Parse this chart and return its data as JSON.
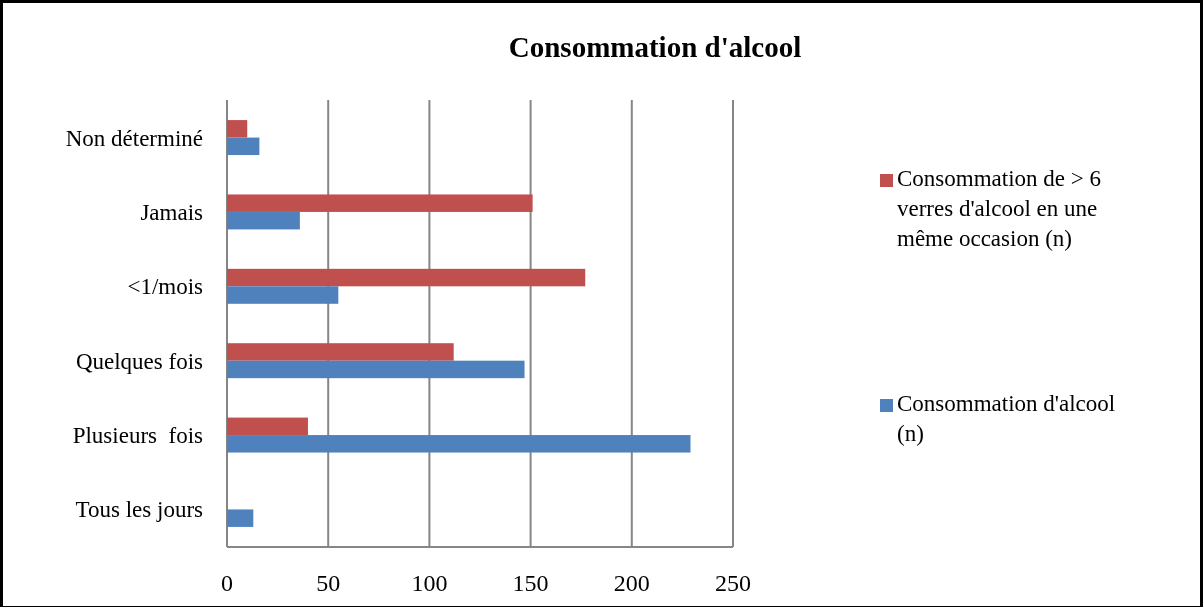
{
  "chart_data": {
    "type": "bar",
    "orientation": "horizontal",
    "title": "Consommation d'alcool",
    "categories": [
      "Non déterminé",
      "Jamais",
      "<1/mois",
      "Quelques fois",
      "Plusieurs  fois",
      "Tous les jours"
    ],
    "series": [
      {
        "name": "Consommation de > 6 verres d'alcool en une même occasion (n)",
        "color": "#c0504d",
        "values": [
          10,
          151,
          177,
          112,
          40,
          null
        ]
      },
      {
        "name": "Consommation d'alcool (n)",
        "color": "#4f81bd",
        "values": [
          16,
          36,
          55,
          147,
          229,
          13
        ]
      }
    ],
    "xlim": [
      0,
      250
    ],
    "xticks": [
      0,
      50,
      100,
      150,
      200,
      250
    ],
    "grid": "x",
    "legend": "right"
  }
}
